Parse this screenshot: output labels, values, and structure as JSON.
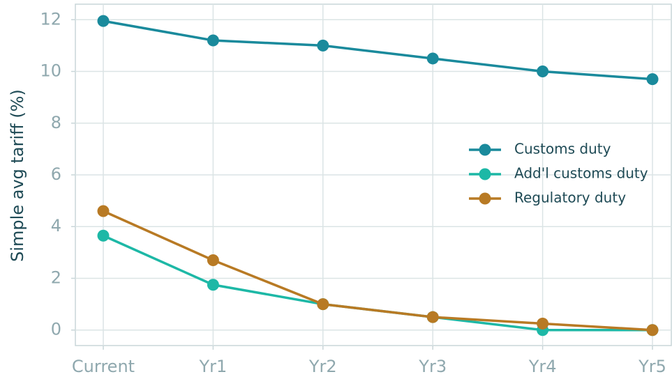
{
  "chart_data": {
    "type": "line",
    "ylabel": "Simple avg tariff (%)",
    "categories": [
      "Current",
      "Yr1",
      "Yr2",
      "Yr3",
      "Yr4",
      "Yr5"
    ],
    "series": [
      {
        "name": "Customs duty",
        "color": "#1a8a9c",
        "values": [
          11.95,
          11.2,
          11.0,
          10.5,
          10.0,
          9.7
        ]
      },
      {
        "name": "Add'l customs duty",
        "color": "#1db8a6",
        "values": [
          3.65,
          1.75,
          1.0,
          0.5,
          0.0,
          0.0
        ]
      },
      {
        "name": "Regulatory duty",
        "color": "#b87a24",
        "values": [
          4.6,
          2.7,
          1.0,
          0.5,
          0.25,
          0.0
        ]
      }
    ],
    "ylim": [
      -0.6,
      12.6
    ],
    "yticks": [
      0,
      2,
      4,
      6,
      8,
      10,
      12
    ],
    "grid": true,
    "legend": "center right"
  }
}
